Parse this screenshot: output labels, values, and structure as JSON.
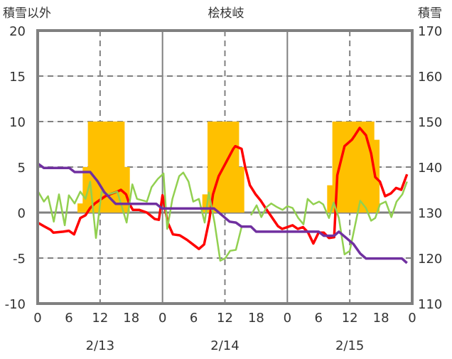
{
  "chart_data": {
    "type": "line",
    "title": "桧枝岐",
    "ylabel_left": "積雪以外",
    "ylabel_right": "積雪",
    "ylim_left": [
      -10,
      20
    ],
    "ylim_right": [
      110,
      170
    ],
    "yticks_left": [
      20,
      15,
      10,
      5,
      0,
      -5,
      -10
    ],
    "yticks_right": [
      170,
      160,
      150,
      140,
      130,
      120,
      110
    ],
    "xlim_hours": [
      0,
      72
    ],
    "xtick_labels": [
      "0",
      "6",
      "12",
      "18",
      "0",
      "6",
      "12",
      "18",
      "0",
      "6",
      "12",
      "18",
      "0"
    ],
    "date_labels": [
      "2/13",
      "2/14",
      "2/15"
    ],
    "grid": true,
    "colors": {
      "bars": "#FFC000",
      "red": "#FF0000",
      "green": "#92D050",
      "purple": "#7030A0",
      "axis": "#808080"
    },
    "bars": {
      "name": "hourly snowfall (left axis)",
      "hours": [
        8,
        9,
        10,
        11,
        12,
        13,
        14,
        15,
        16,
        17,
        32,
        33,
        34,
        35,
        36,
        37,
        38,
        39,
        56,
        57,
        58,
        59,
        60,
        61,
        62,
        63,
        64,
        65
      ],
      "values": [
        1,
        5,
        10,
        10,
        10,
        10,
        10,
        10,
        10,
        5,
        2,
        10,
        10,
        10,
        10,
        10,
        10,
        5,
        3,
        10,
        10,
        10,
        10,
        10,
        10,
        10,
        10,
        8
      ]
    },
    "series": [
      {
        "name": "red (left axis)",
        "axis": "left",
        "points": [
          [
            0,
            -1.1
          ],
          [
            1.2,
            -1.5
          ],
          [
            2.5,
            -1.9
          ],
          [
            3,
            -2.2
          ],
          [
            4.9,
            -2.1
          ],
          [
            6,
            -2.0
          ],
          [
            7,
            -2.4
          ],
          [
            8.2,
            -0.6
          ],
          [
            9.2,
            -0.3
          ],
          [
            10.1,
            0.5
          ],
          [
            11,
            1.0
          ],
          [
            12,
            1.4
          ],
          [
            13,
            1.8
          ],
          [
            14.3,
            2.1
          ],
          [
            15.3,
            2.3
          ],
          [
            16,
            2.5
          ],
          [
            17,
            2.0
          ],
          [
            17.6,
            1.0
          ],
          [
            18.3,
            0.3
          ],
          [
            19.5,
            0.3
          ],
          [
            21,
            0.0
          ],
          [
            22.5,
            -0.7
          ],
          [
            23.3,
            -0.8
          ],
          [
            24,
            1.9
          ],
          [
            25,
            -1.1
          ],
          [
            26,
            -2.4
          ],
          [
            27.3,
            -2.5
          ],
          [
            28.7,
            -3.0
          ],
          [
            31,
            -4.0
          ],
          [
            32,
            -3.5
          ],
          [
            33,
            -0.8
          ],
          [
            33.7,
            2.0
          ],
          [
            34.8,
            4.0
          ],
          [
            36.2,
            5.5
          ],
          [
            37.6,
            7.0
          ],
          [
            38,
            7.3
          ],
          [
            39.2,
            7.0
          ],
          [
            39.9,
            5.0
          ],
          [
            40.8,
            3.0
          ],
          [
            41.9,
            2.0
          ],
          [
            42.9,
            1.3
          ],
          [
            43.8,
            0.5
          ],
          [
            45,
            -0.5
          ],
          [
            46.2,
            -1.5
          ],
          [
            47,
            -1.8
          ],
          [
            48,
            -1.6
          ],
          [
            49,
            -1.4
          ],
          [
            50,
            -1.8
          ],
          [
            51,
            -1.6
          ],
          [
            52,
            -2.2
          ],
          [
            53,
            -3.4
          ],
          [
            54,
            -2.2
          ],
          [
            55,
            -2.2
          ],
          [
            56,
            -2.8
          ],
          [
            57,
            -2.7
          ],
          [
            57.6,
            4.1
          ],
          [
            59,
            7.3
          ],
          [
            60.4,
            8.0
          ],
          [
            61,
            8.5
          ],
          [
            61.9,
            9.3
          ],
          [
            63.1,
            8.5
          ],
          [
            64.1,
            6.5
          ],
          [
            64.9,
            3.9
          ],
          [
            65.8,
            3.4
          ],
          [
            66.8,
            1.8
          ],
          [
            67.9,
            2.1
          ],
          [
            68.9,
            2.7
          ],
          [
            69.9,
            2.5
          ],
          [
            71,
            4.2
          ]
        ]
      },
      {
        "name": "green (left axis)",
        "axis": "left",
        "points": [
          [
            0,
            2.4
          ],
          [
            1.2,
            1.2
          ],
          [
            2,
            1.8
          ],
          [
            3.1,
            -1.0
          ],
          [
            4.1,
            2.0
          ],
          [
            5.2,
            -1.4
          ],
          [
            6,
            1.9
          ],
          [
            7.1,
            1.0
          ],
          [
            8.2,
            2.3
          ],
          [
            9.2,
            1.5
          ],
          [
            10.1,
            3.4
          ],
          [
            11.2,
            -2.8
          ],
          [
            12.3,
            2.3
          ],
          [
            13.3,
            2.0
          ],
          [
            14.2,
            2.1
          ],
          [
            15.3,
            2.3
          ],
          [
            17.1,
            -1.1
          ],
          [
            18.2,
            3.1
          ],
          [
            19.1,
            1.5
          ],
          [
            21.0,
            1.2
          ],
          [
            21.9,
            2.8
          ],
          [
            23.1,
            3.7
          ],
          [
            24.2,
            4.3
          ],
          [
            24.9,
            -1.8
          ],
          [
            25.9,
            1.5
          ],
          [
            27.2,
            4.0
          ],
          [
            28,
            4.4
          ],
          [
            29,
            3.4
          ],
          [
            29.9,
            1.2
          ],
          [
            31,
            1.5
          ],
          [
            32.1,
            -1.1
          ],
          [
            32.9,
            2.2
          ],
          [
            34,
            -1.1
          ],
          [
            35.1,
            -5.3
          ],
          [
            36.1,
            -5.0
          ],
          [
            37,
            -4.2
          ],
          [
            38.1,
            -4.1
          ],
          [
            39.2,
            -1.6
          ],
          null,
          [
            41,
            -0.3
          ],
          [
            42.1,
            0.8
          ],
          [
            43,
            -0.5
          ],
          [
            44,
            0.6
          ],
          [
            44.9,
            1.0
          ],
          [
            46,
            0.6
          ],
          [
            47.1,
            0.3
          ],
          [
            48,
            0.7
          ],
          [
            49,
            0.5
          ],
          [
            50.1,
            -0.6
          ],
          [
            51.1,
            -1.3
          ],
          [
            51.9,
            1.5
          ],
          [
            53,
            0.9
          ],
          [
            54.1,
            1.2
          ],
          [
            54.9,
            0.9
          ],
          [
            56,
            -0.6
          ],
          [
            56.9,
            1.1
          ],
          [
            57.9,
            -0.6
          ],
          [
            59,
            -4.6
          ],
          [
            60,
            -4.2
          ],
          [
            62,
            1.3
          ],
          [
            63.1,
            0.5
          ],
          [
            64.1,
            -0.9
          ],
          [
            64.9,
            -0.6
          ],
          [
            65.8,
            0.9
          ],
          [
            66.9,
            1.2
          ],
          [
            68,
            -0.5
          ],
          [
            69,
            1.2
          ],
          [
            70.1,
            2.0
          ],
          [
            71,
            3.4
          ]
        ]
      },
      {
        "name": "purple (right axis, snow depth)",
        "axis": "right",
        "points": [
          [
            0,
            140.8
          ],
          [
            1.2,
            139.8
          ],
          [
            6.1,
            139.8
          ],
          [
            7.1,
            138.9
          ],
          [
            10.1,
            138.9
          ],
          [
            11.5,
            136.9
          ],
          [
            12.8,
            134.5
          ],
          [
            15,
            131.9
          ],
          [
            22.8,
            131.9
          ],
          [
            23.9,
            130.9
          ],
          [
            33.9,
            130.9
          ],
          [
            36.9,
            128.0
          ],
          [
            38.1,
            127.8
          ],
          [
            39.2,
            126.9
          ],
          [
            41,
            126.9
          ],
          [
            42,
            125.8
          ],
          [
            54,
            125.8
          ],
          [
            55,
            124.9
          ],
          [
            57,
            124.9
          ],
          [
            57.9,
            125.8
          ],
          [
            60.7,
            123.1
          ],
          [
            62.0,
            121.0
          ],
          [
            63.1,
            119.9
          ],
          [
            70,
            119.9
          ],
          [
            71,
            118.9
          ]
        ]
      }
    ]
  }
}
